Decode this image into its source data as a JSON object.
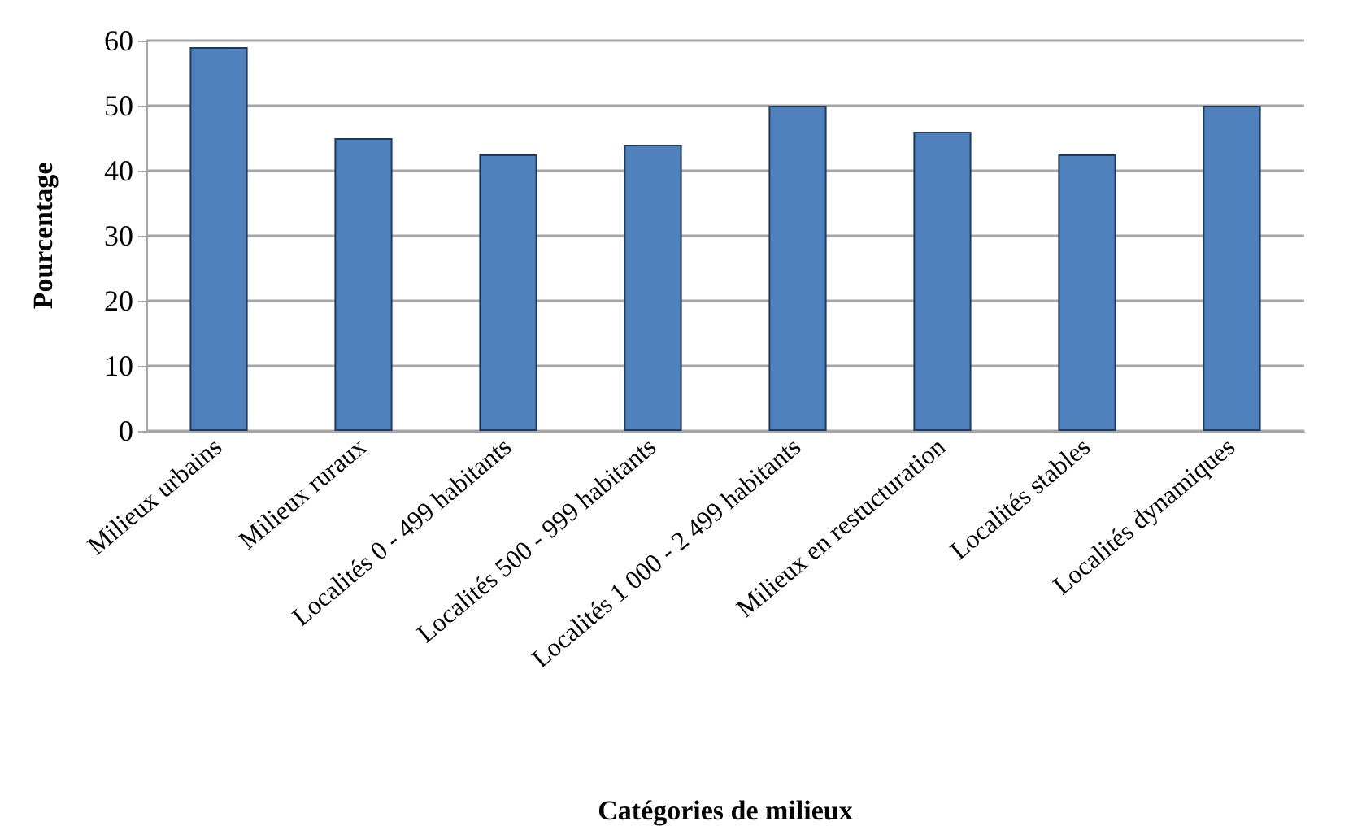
{
  "chart_data": {
    "type": "bar",
    "xlabel": "Catégories de milieux",
    "ylabel": "Pourcentage",
    "categories": [
      "Milieux urbains",
      "Milieux ruraux",
      "Localités 0 - 499 habitants",
      "Localités 500 - 999 habitants",
      "Localités 1 000 - 2 499 habitants",
      "Milieux en restucturation",
      "Localités stables",
      "Localités dynamiques"
    ],
    "values": [
      59,
      45,
      42.5,
      44,
      50,
      46,
      42.5,
      50
    ],
    "color": "#4f81bd",
    "ylim": [
      0,
      60
    ],
    "yticks": [
      0,
      10,
      20,
      30,
      40,
      50,
      60
    ],
    "grid": "y"
  }
}
